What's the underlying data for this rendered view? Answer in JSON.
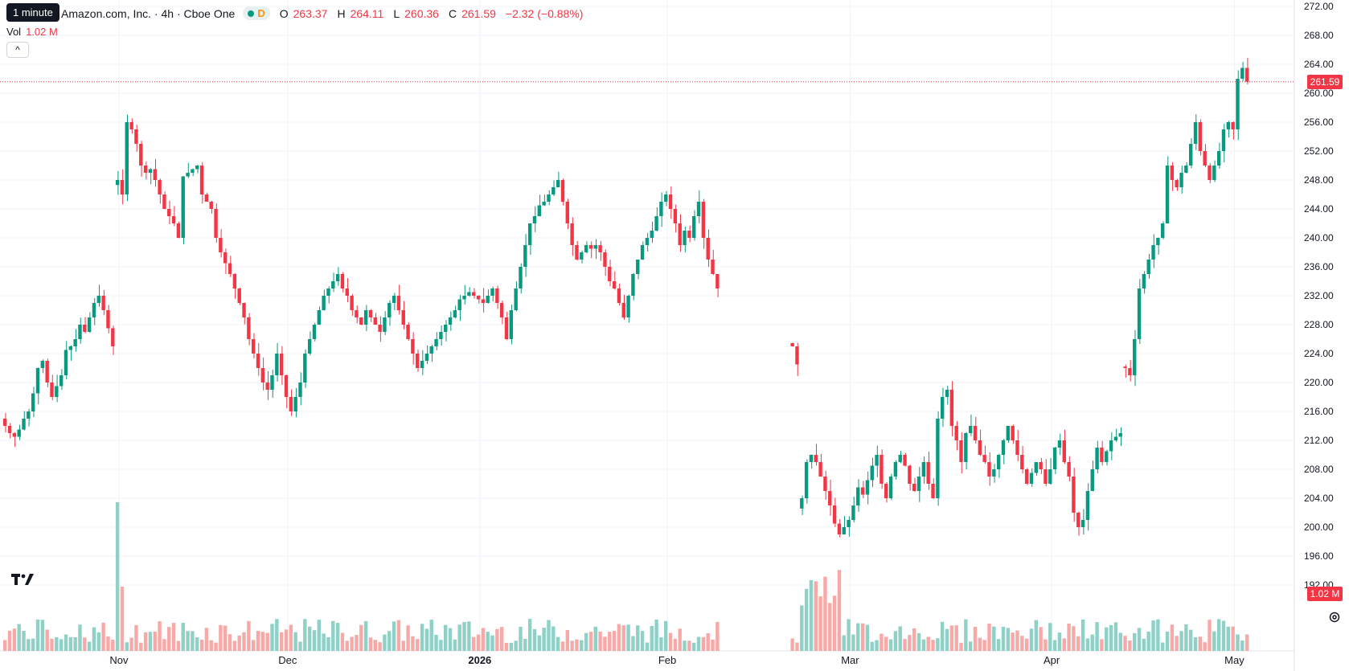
{
  "header": {
    "tooltip": "1 minute",
    "title": "Amazon.com, Inc. · 4h · Cboe One",
    "interval_flag": "D",
    "ohlc": [
      {
        "label": "O",
        "value": "263.37"
      },
      {
        "label": "H",
        "value": "264.11"
      },
      {
        "label": "L",
        "value": "260.36"
      },
      {
        "label": "C",
        "value": "261.59"
      }
    ],
    "change": "−2.32 (−0.88%)"
  },
  "volume_legend": {
    "label": "Vol",
    "value": "1.02 M"
  },
  "collapse_button": "^",
  "last_price_tag": "261.59",
  "volume_tag": "1.02 M",
  "colors": {
    "up": "#089981",
    "down": "#f23645",
    "up_vol": "#8fd0c7",
    "down_vol": "#f7a9a7",
    "grid": "#f0f3fa"
  },
  "chart_data": {
    "type": "candlestick",
    "interval": "4h",
    "ylim": [
      190,
      272
    ],
    "y_ticks": [
      "192.00",
      "196.00",
      "200.00",
      "204.00",
      "208.00",
      "212.00",
      "216.00",
      "220.00",
      "224.00",
      "228.00",
      "232.00",
      "236.00",
      "240.00",
      "244.00",
      "248.00",
      "252.00",
      "256.00",
      "260.00",
      "264.00",
      "268.00",
      "272.00"
    ],
    "x_ticks": [
      "Nov",
      "Dec",
      "2026",
      "Feb",
      "Mar",
      "Apr",
      "May"
    ],
    "last_price": 261.59,
    "volume_last": "1.02 M",
    "segments": [
      {
        "start": 0,
        "closes": [
          214.0,
          213.0,
          212.5,
          213.5,
          215.0,
          216.0,
          218.5,
          222.0,
          223.0,
          220.0,
          218.0,
          219.5,
          221.0,
          224.5,
          225.0,
          226.0,
          228.0,
          227.0,
          229.0,
          231.0,
          232.0,
          230.0,
          227.5,
          225.0
        ]
      },
      {
        "start": 24,
        "closes": [
          248.0,
          246.0,
          256.0,
          255.0,
          253.0,
          250.0,
          249.0,
          249.5,
          248.0,
          246.0,
          244.0,
          243.0,
          242.0,
          240.0,
          248.5,
          249.0,
          249.5,
          250.0,
          246.0,
          245.0,
          244.0,
          240.0,
          238.0,
          236.5,
          235.0,
          233.0,
          231.0,
          229.0,
          226.0,
          224.0,
          222.0,
          220.0,
          219.0,
          221.0,
          224.0,
          221.0,
          218.0,
          216.0,
          218.0,
          220.0,
          224.0,
          226.0,
          228.0,
          230.0,
          232.0,
          233.0,
          234.0,
          235.0,
          233.0,
          232.0,
          230.0,
          229.0,
          228.0,
          230.0,
          229.0,
          228.0,
          227.0,
          229.0,
          231.0,
          232.0,
          230.0,
          228.0,
          226.0,
          224.0,
          222.0,
          223.0,
          224.0,
          225.0,
          226.0,
          227.0,
          228.0,
          229.0,
          230.0,
          231.5,
          232.0,
          232.5,
          232.0,
          231.5,
          231.0,
          232.0,
          233.0,
          231.0,
          229.0,
          226.0,
          230.0,
          233.0,
          236.0,
          239.0,
          242.0,
          243.0,
          244.5,
          245.0,
          246.0,
          247.0,
          248.0,
          245.0,
          242.0,
          239.0,
          237.0,
          238.0,
          239.0,
          238.5,
          239.0,
          238.0,
          236.0,
          234.0,
          233.0,
          231.0,
          229.0,
          232.0,
          235.0,
          237.0,
          239.0,
          240.0,
          241.0,
          243.0,
          245.0,
          246.0,
          244.0,
          242.0,
          239.0,
          241.0,
          240.0,
          243.0,
          245.0,
          240.0,
          237.0,
          235.0,
          233.0
        ]
      },
      {
        "start": 168,
        "closes": [
          225.0,
          222.5
        ]
      },
      {
        "start": 170,
        "closes": [
          204.0,
          209.0,
          210.0,
          209.0,
          207.0,
          205.0,
          203.0,
          200.5,
          199.0,
          200.0,
          201.0,
          203.0,
          205.5,
          204.5,
          206.5,
          208.5,
          210.0,
          206.0,
          204.0,
          207.0,
          209.0,
          210.0,
          208.5,
          206.0,
          205.0,
          207.0,
          209.0,
          206.0,
          204.0,
          215.0,
          218.0,
          219.0,
          214.0,
          212.0,
          209.0,
          213.0,
          214.0,
          212.0,
          210.0,
          209.0,
          207.0,
          208.0,
          210.0,
          212.0,
          214.0,
          212.0,
          210.0,
          208.0,
          206.0,
          207.5,
          209.0,
          208.0,
          206.0,
          208.0,
          211.0,
          212.0,
          209.0,
          207.0,
          202.0,
          200.0,
          201.0,
          205.0,
          208.0,
          211.0,
          209.0,
          210.5,
          212.0,
          212.5,
          213.0
        ]
      },
      {
        "start": 239,
        "closes": [
          222.0,
          221.0,
          226.0,
          233.0,
          235.0,
          237.0,
          239.0,
          240.0,
          242.0,
          250.0,
          248.0,
          247.0,
          249.0,
          250.0,
          253.0,
          256.0,
          252.0,
          250.0,
          248.0,
          250.0,
          252.0,
          255.0,
          256.0,
          255.0,
          262.0,
          263.5,
          261.59
        ]
      }
    ],
    "open_first": 215.0,
    "volume_seed": 7
  }
}
